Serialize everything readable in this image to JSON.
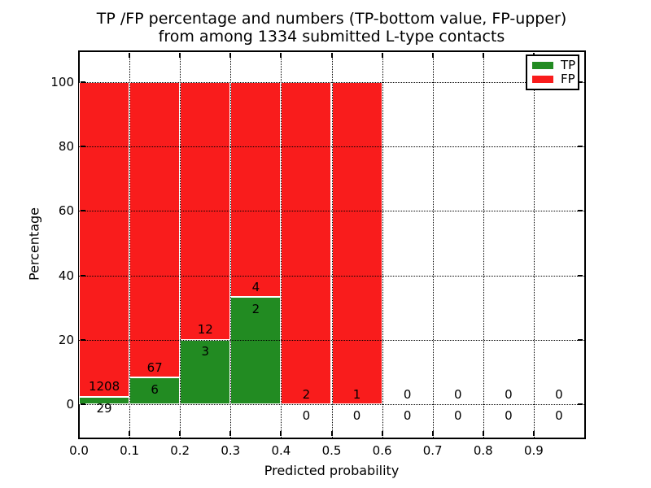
{
  "title": {
    "line1": "TP /FP percentage and numbers (TP-bottom value, FP-upper)",
    "line2": "from among 1334 submitted L-type contacts"
  },
  "axes": {
    "xlabel": "Predicted probability",
    "ylabel": "Percentage"
  },
  "legend": {
    "items": [
      {
        "label": "TP",
        "color": "#228b22"
      },
      {
        "label": "FP",
        "color": "#f91c1c"
      }
    ]
  },
  "chart_data": {
    "type": "bar",
    "stacked": true,
    "title": "TP /FP percentage and numbers (TP-bottom value, FP-upper) from among 1334 submitted L-type contacts",
    "xlabel": "Predicted probability",
    "ylabel": "Percentage",
    "total_contacts": 1334,
    "bin_edges": [
      0.0,
      0.1,
      0.2,
      0.3,
      0.4,
      0.5,
      0.6,
      0.7,
      0.8,
      0.9,
      1.0
    ],
    "series": [
      {
        "name": "TP",
        "color": "#228b22",
        "counts": [
          29,
          6,
          3,
          2,
          0,
          0,
          0,
          0,
          0,
          0
        ]
      },
      {
        "name": "FP",
        "color": "#f91c1c",
        "counts": [
          1208,
          67,
          12,
          4,
          2,
          1,
          0,
          0,
          0,
          0
        ]
      }
    ],
    "bar_height_rule": "TP% = TP/(TP+FP)*100, FP stacked above to 100%; bins with no contacts draw no bar",
    "xlim": [
      0.0,
      1.0
    ],
    "ylim": [
      -10.4,
      109.6
    ],
    "xticks": [
      "0.0",
      "0.1",
      "0.2",
      "0.3",
      "0.4",
      "0.5",
      "0.6",
      "0.7",
      "0.8",
      "0.9"
    ],
    "xtick_values": [
      0.0,
      0.1,
      0.2,
      0.3,
      0.4,
      0.5,
      0.6,
      0.7,
      0.8,
      0.9
    ],
    "yticks": [
      "0",
      "20",
      "40",
      "60",
      "80",
      "100"
    ],
    "ytick_values": [
      0,
      20,
      40,
      60,
      80,
      100
    ],
    "grid": "dotted, drawn above bars",
    "legend_position": "upper right",
    "bar_edge_color": "#ffffff",
    "label_offset_pct": {
      "fp_above_green_top": 3.1,
      "tp_below_green_top": -3.7
    }
  }
}
